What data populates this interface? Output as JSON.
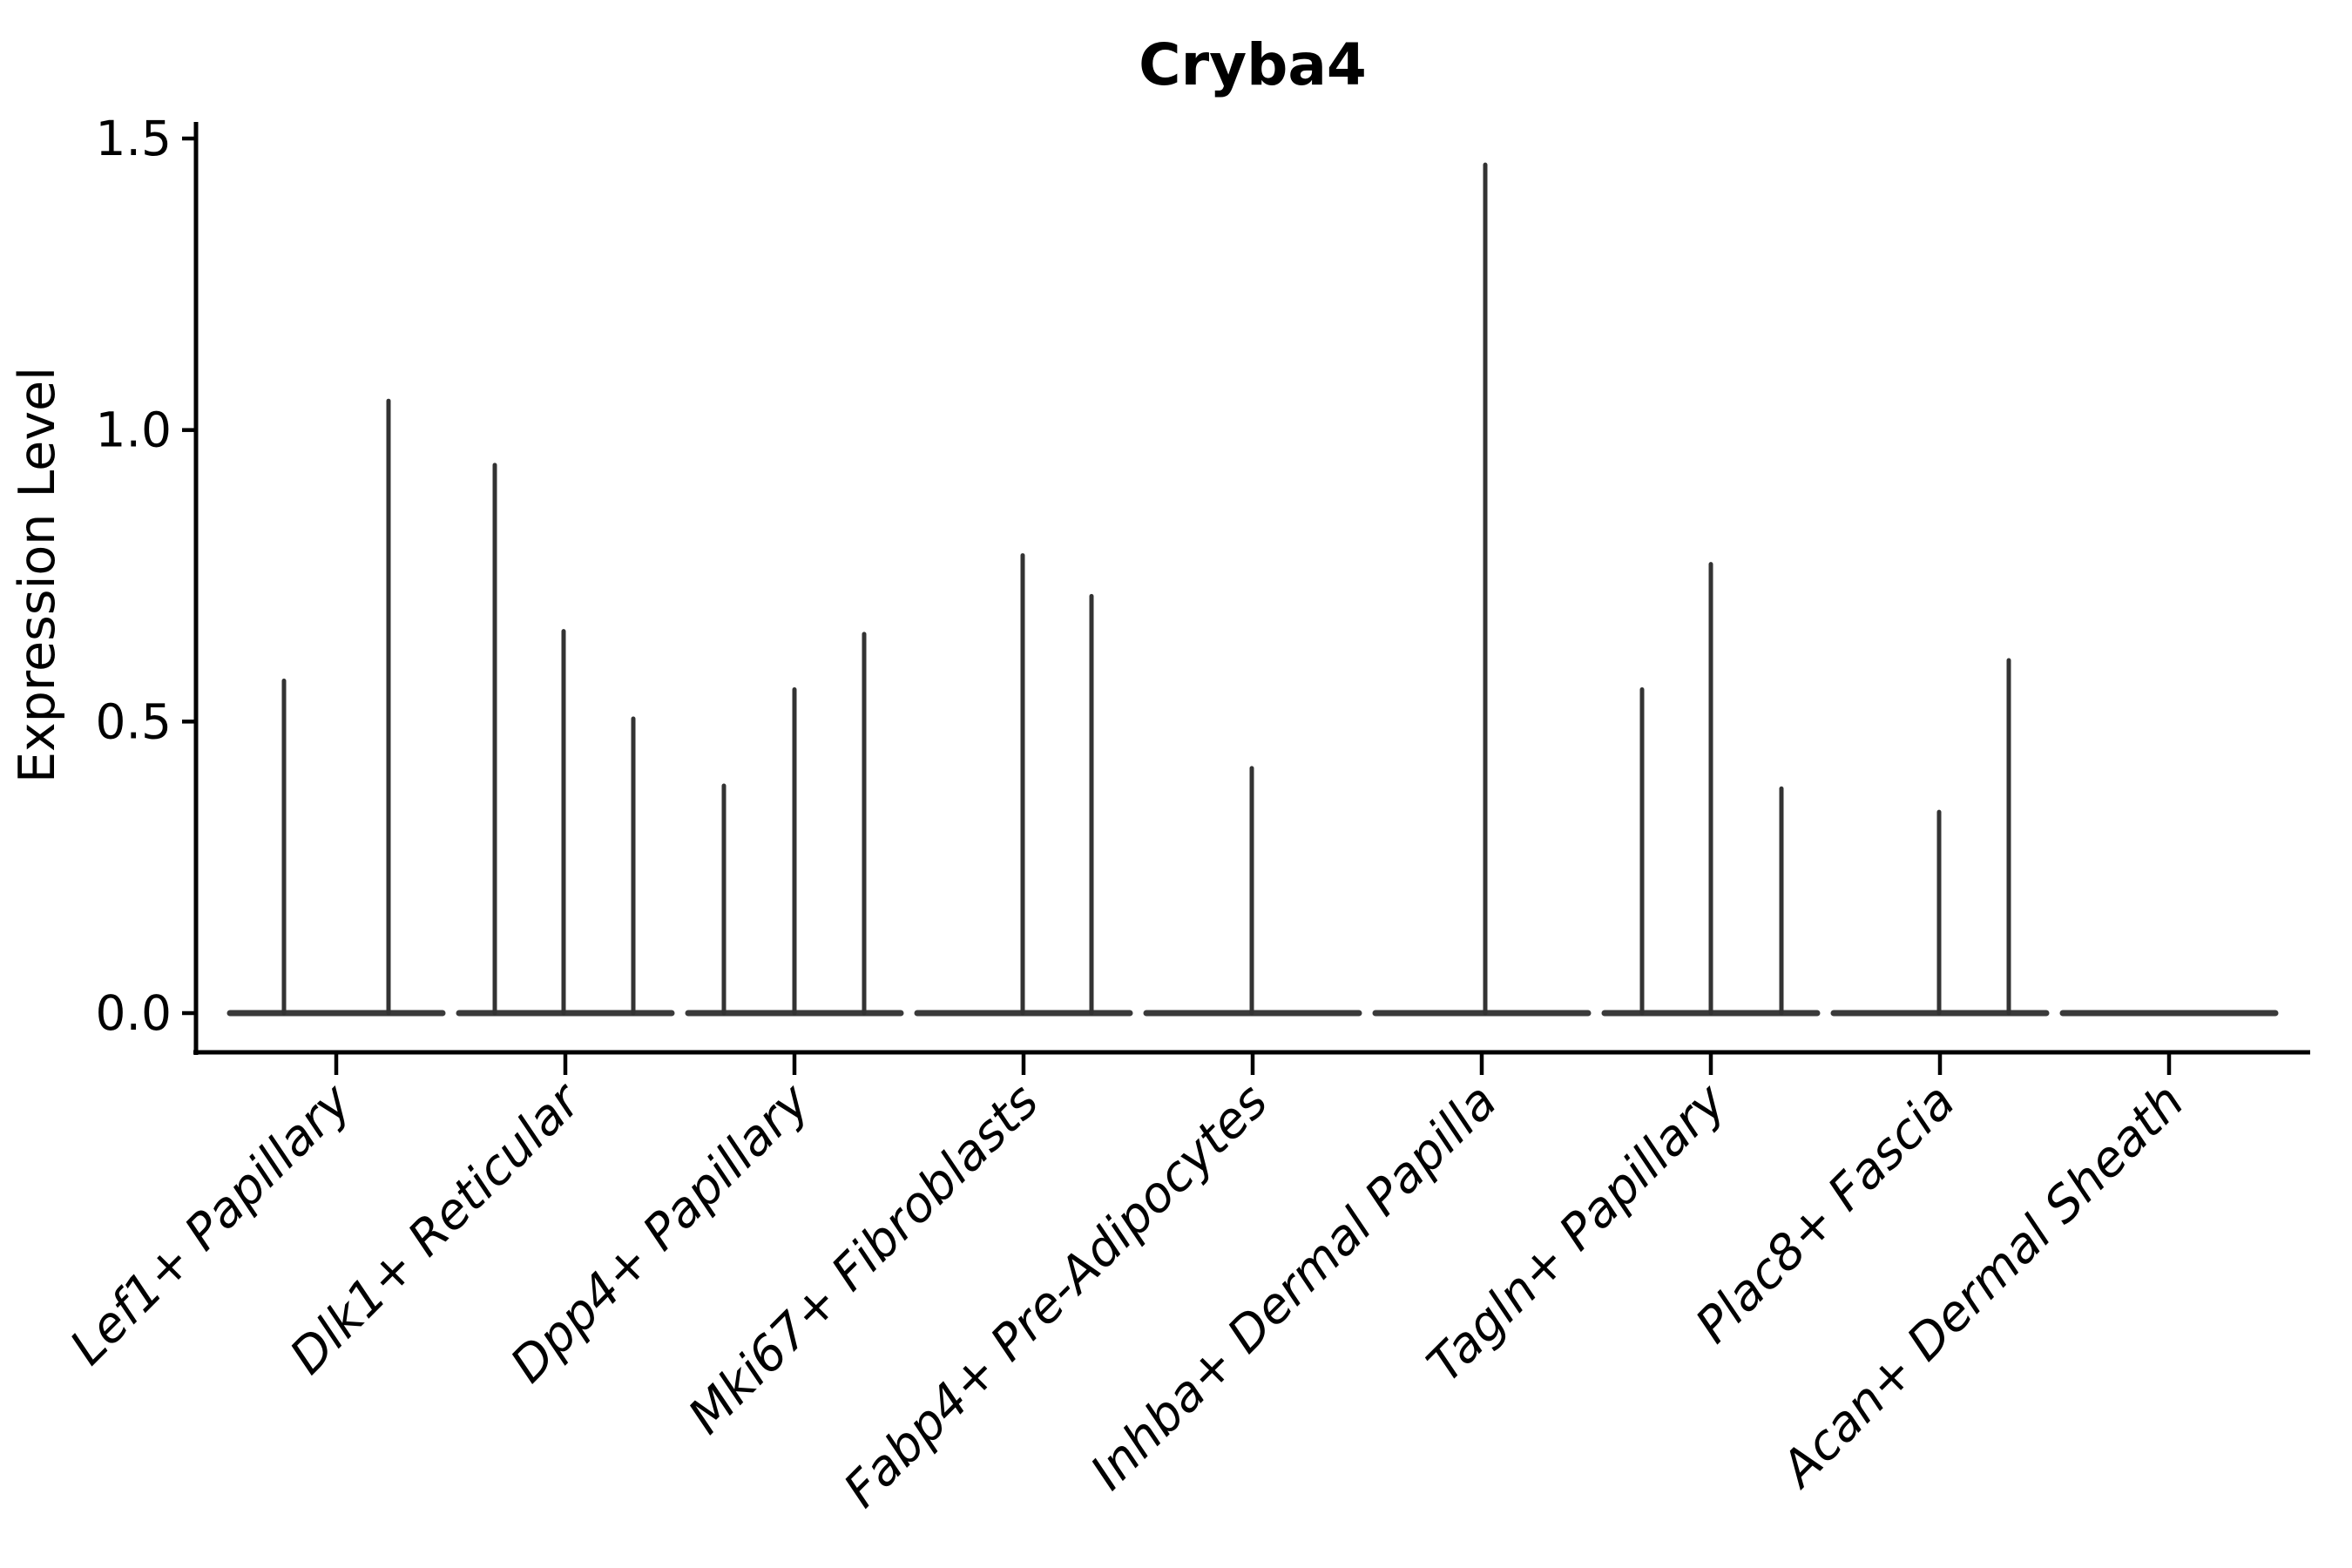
{
  "chart_data": {
    "type": "violin",
    "title": "Cryba4",
    "ylabel": "Expression Level",
    "xlabel": "",
    "ylim": [
      0.0,
      1.5
    ],
    "ytick_labels": [
      "0.0",
      "0.5",
      "1.0",
      "1.5"
    ],
    "ytick_values": [
      0.0,
      0.5,
      1.0,
      1.5
    ],
    "grid": false,
    "legend": false,
    "background_color": "#ffffff",
    "axis_color": "#000000",
    "violin_color": "#333333",
    "baseline_color": "#3a3a3a",
    "categories": [
      "Lef1+ Papillary",
      "Dlk1+ Reticular",
      "Dpp4+ Papillary",
      "Mki67+ Fibroblasts",
      "Fabp4+ Pre-Adipocytes",
      "Inhba+ Dermal Papilla",
      "Tagln+ Papillary",
      "Plac8+ Fascia",
      "Acan+ Dermal Sheath"
    ],
    "series": [
      {
        "category": "Lef1+ Papillary",
        "baseline_value": 0.0,
        "spikes": [
          {
            "dx": -60,
            "max": 0.57
          },
          {
            "dx": 60,
            "max": 1.05
          }
        ]
      },
      {
        "category": "Dlk1+ Reticular",
        "baseline_value": 0.0,
        "spikes": [
          {
            "dx": -81,
            "max": 0.94
          },
          {
            "dx": -2,
            "max": 0.655
          },
          {
            "dx": 78,
            "max": 0.505
          }
        ]
      },
      {
        "category": "Dpp4+ Papillary",
        "baseline_value": 0.0,
        "spikes": [
          {
            "dx": -81,
            "max": 0.39
          },
          {
            "dx": 0,
            "max": 0.555
          },
          {
            "dx": 80,
            "max": 0.65
          }
        ]
      },
      {
        "category": "Mki67+ Fibroblasts",
        "baseline_value": 0.0,
        "spikes": [
          {
            "dx": -1,
            "max": 0.785
          },
          {
            "dx": 78,
            "max": 0.715
          }
        ]
      },
      {
        "category": "Fabp4+ Pre-Adipocytes",
        "baseline_value": 0.0,
        "spikes": [
          {
            "dx": -1,
            "max": 0.42
          }
        ]
      },
      {
        "category": "Inhba+ Dermal Papilla",
        "baseline_value": 0.0,
        "spikes": [
          {
            "dx": 4,
            "max": 1.455
          }
        ]
      },
      {
        "category": "Tagln+ Papillary",
        "baseline_value": 0.0,
        "spikes": [
          {
            "dx": -79,
            "max": 0.555
          },
          {
            "dx": 0,
            "max": 0.77
          },
          {
            "dx": 81,
            "max": 0.385
          }
        ]
      },
      {
        "category": "Plac8+ Fascia",
        "baseline_value": 0.0,
        "spikes": [
          {
            "dx": -1,
            "max": 0.345
          },
          {
            "dx": 79,
            "max": 0.605
          }
        ]
      },
      {
        "category": "Acan+ Dermal Sheath",
        "baseline_value": 0.0,
        "spikes": []
      }
    ]
  }
}
